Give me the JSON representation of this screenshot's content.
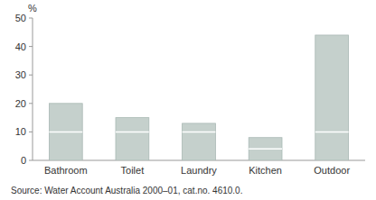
{
  "chart_data": {
    "type": "bar",
    "categories": [
      "Bathroom",
      "Toilet",
      "Laundry",
      "Kitchen",
      "Outdoor"
    ],
    "values": [
      20,
      15,
      13,
      8,
      44
    ],
    "mid_lines": [
      10,
      10,
      10,
      4,
      10
    ],
    "color": "#c5d0cc",
    "ylabel": "%",
    "source": "Source: Water Account Australia 2000–01, cat.no. 4610.0.",
    "ylim": [
      0,
      50
    ],
    "yticks": [
      0,
      10,
      20,
      30,
      40,
      50
    ],
    "grid": false
  }
}
